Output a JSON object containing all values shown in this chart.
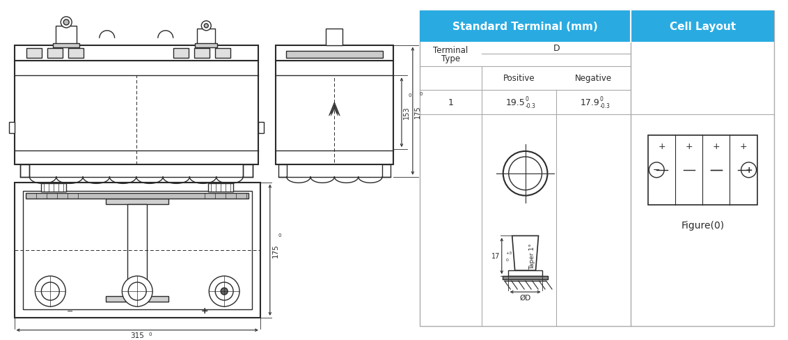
{
  "bg_color": "#ffffff",
  "line_color": "#2a2a2a",
  "blue_color": "#29ABE2",
  "header1": "Standard Terminal (mm)",
  "header2": "Cell Layout",
  "terminal_type_label": "Terminal\nType",
  "d_label": "D",
  "positive_label": "Positive",
  "negative_label": "Negative",
  "row_num": "1",
  "pos_val": "19.5",
  "pos_sup": "0",
  "pos_sub": "-0.3",
  "neg_val": "17.9",
  "neg_sup": "0",
  "neg_sub": "-0.3",
  "dim_153": "153",
  "dim_153_sup": "0",
  "dim_175a": "175",
  "dim_175a_sup": "0",
  "dim_315": "315",
  "dim_315_sup": "0",
  "dim_175b": "175",
  "dim_175b_sup": "0",
  "dim_17": "17",
  "dim_17_sup": "+3",
  "dim_17_sub": "0",
  "taper_label": "Taper 1°",
  "diam_label": "ØD",
  "figure_label": "Figure(0)"
}
